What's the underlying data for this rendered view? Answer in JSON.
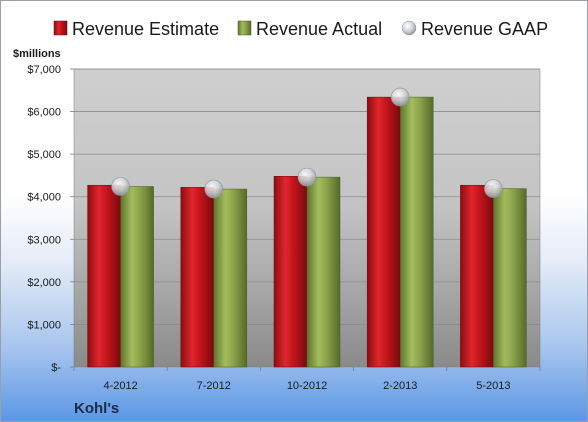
{
  "chart_data": {
    "type": "bar",
    "ylabel": "$millions",
    "company": "Kohl's",
    "categories": [
      "4-2012",
      "7-2012",
      "10-2012",
      "2-2013",
      "5-2013"
    ],
    "series": [
      {
        "name": "Revenue Estimate",
        "kind": "bar",
        "color": "#c0141b",
        "values": [
          4270,
          4220,
          4480,
          6340,
          4270
        ]
      },
      {
        "name": "Revenue Actual",
        "kind": "bar",
        "color": "#8aa34a",
        "values": [
          4240,
          4180,
          4460,
          6340,
          4190
        ]
      },
      {
        "name": "Revenue GAAP",
        "kind": "marker",
        "color": "#b8bcc4",
        "values": [
          4240,
          4180,
          4460,
          6340,
          4190
        ]
      }
    ],
    "ylim": [
      0,
      7000
    ],
    "yticks": [
      {
        "value": 0,
        "label": "$-"
      },
      {
        "value": 1000,
        "label": "$1,000"
      },
      {
        "value": 2000,
        "label": "$2,000"
      },
      {
        "value": 3000,
        "label": "$3,000"
      },
      {
        "value": 4000,
        "label": "$4,000"
      },
      {
        "value": 5000,
        "label": "$5,000"
      },
      {
        "value": 6000,
        "label": "$6,000"
      },
      {
        "value": 7000,
        "label": "$7,000"
      }
    ],
    "grid": true,
    "legend": "top"
  }
}
